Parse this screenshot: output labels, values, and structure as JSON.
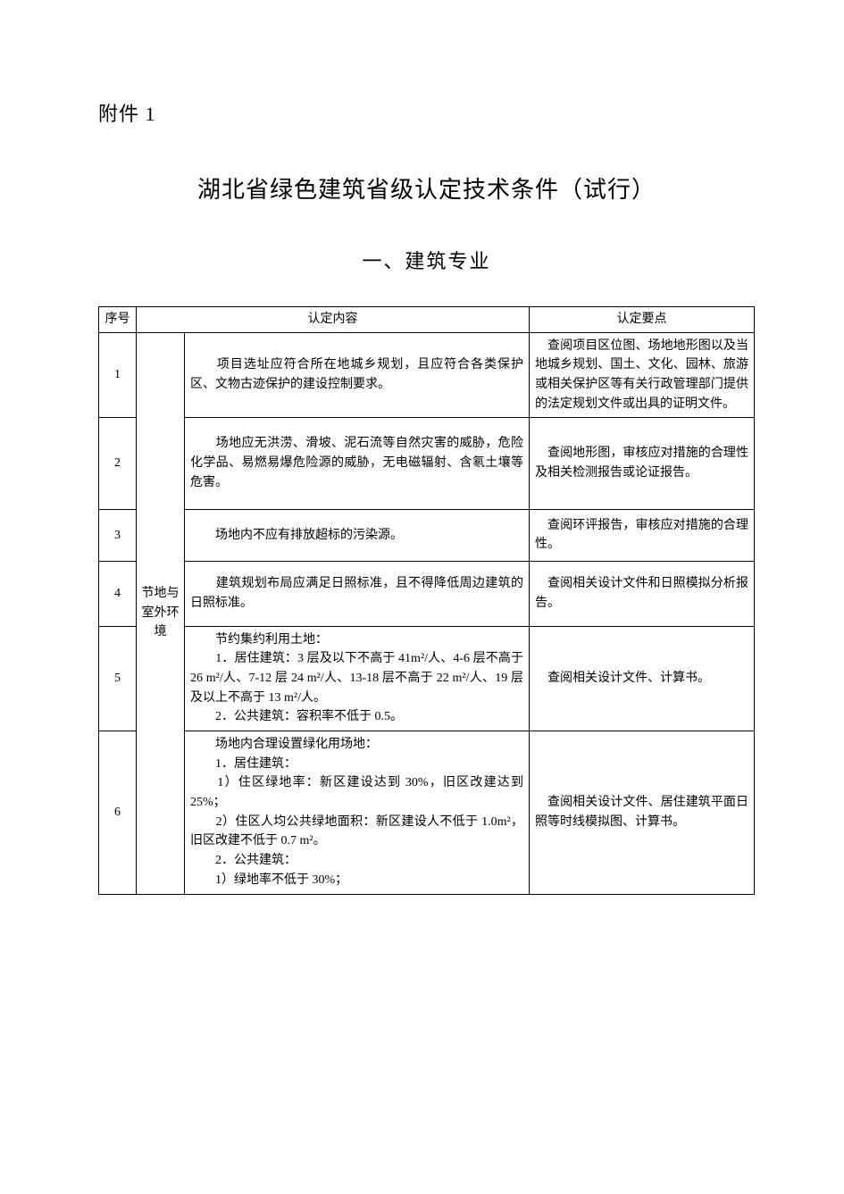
{
  "page": {
    "background_color": "#ffffff",
    "text_color": "#000000",
    "font_family": "SimSun, 宋体, serif"
  },
  "attachment_label": "附件 1",
  "main_title": "湖北省绿色建筑省级认定技术条件（试行）",
  "section_title": "一、建筑专业",
  "table": {
    "columns": {
      "seq": "序号",
      "content": "认定内容",
      "points": "认定要点"
    },
    "category_label": "节地与室外环境",
    "rows": [
      {
        "seq": "1",
        "content": "　　项目选址应符合所在地城乡规划，且应符合各类保护区、文物古迹保护的建设控制要求。",
        "points": "　查阅项目区位图、场地地形图以及当地城乡规划、国土、文化、园林、旅游或相关保护区等有关行政管理部门提供的法定规划文件或出具的证明文件。"
      },
      {
        "seq": "2",
        "content": "　　场地应无洪涝、滑坡、泥石流等自然灾害的威胁，危险化学品、易燃易爆危险源的威胁，无电磁辐射、含氡土壤等危害。",
        "points": "　查阅地形图，审核应对措施的合理性及相关检测报告或论证报告。"
      },
      {
        "seq": "3",
        "content": "　　场地内不应有排放超标的污染源。",
        "points": "　查阅环评报告，审核应对措施的合理性。"
      },
      {
        "seq": "4",
        "content": "　　建筑规划布局应满足日照标准，且不得降低周边建筑的日照标准。",
        "points": "　查阅相关设计文件和日照模拟分析报告。"
      },
      {
        "seq": "5",
        "content_html": "　　节约集约利用土地：<br>　　1．居住建筑：3 层及以下不高于 41m²/人、4-6 层不高于 26 m²/人、7-12 层 24 m²/人、13-18 层不高于 22 m²/人、19 层及以上不高于 13 m²/人。<br>　　2．公共建筑：容积率不低于 0.5。",
        "points": "　查阅相关设计文件、计算书。"
      },
      {
        "seq": "6",
        "content_html": "　　场地内合理设置绿化用场地：<br>　　1．居住建筑：<br>　　1）住区绿地率：新区建设达到 30%，旧区改建达到 25%；<br>　　2）住区人均公共绿地面积：新区建设人不低于 1.0m²，旧区改建不低于 0.7 m²。<br>　　2．公共建筑：<br>　　1）绿地率不低于 30%；",
        "points": "　查阅相关设计文件、居住建筑平面日照等时线模拟图、计算书。"
      }
    ]
  }
}
